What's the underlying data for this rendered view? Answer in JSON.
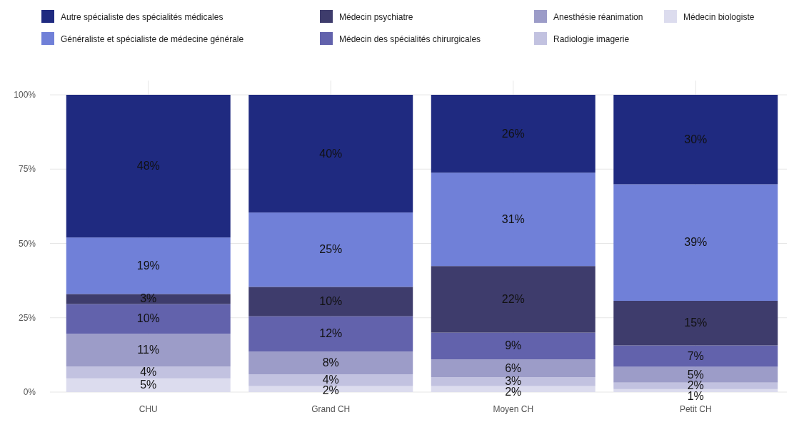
{
  "chart_data": {
    "type": "bar",
    "stacked": true,
    "categories": [
      "CHU",
      "Grand CH",
      "Moyen CH",
      "Petit CH"
    ],
    "ylim": [
      0,
      100
    ],
    "yticks": [
      {
        "value": 0,
        "label": "0%"
      },
      {
        "value": 25,
        "label": "25%"
      },
      {
        "value": 50,
        "label": "50%"
      },
      {
        "value": 75,
        "label": "75%"
      },
      {
        "value": 100,
        "label": "100%"
      }
    ],
    "grid": true,
    "legend": "top",
    "data_labels": false,
    "series": [
      {
        "name": "Médecin biologiste",
        "color": "#dcdcee",
        "values": [
          4.6,
          2,
          2,
          1
        ],
        "value_labels": [
          "5%",
          "2%",
          "2%",
          "1%"
        ]
      },
      {
        "name": "Radiologie imagerie",
        "color": "#c2c2e0",
        "values": [
          4,
          4,
          3,
          2.2
        ],
        "value_labels": [
          "4%",
          "4%",
          "3%",
          "2%"
        ]
      },
      {
        "name": "Anesthésie réanimation",
        "color": "#9c9cc8",
        "values": [
          11,
          7.6,
          6,
          5.3
        ],
        "value_labels": [
          "11%",
          "8%",
          "6%",
          "5%"
        ]
      },
      {
        "name": "Médecin des spécialités chirurgicales",
        "color": "#6262ac",
        "values": [
          10,
          11.9,
          9,
          7.2
        ],
        "value_labels": [
          "10%",
          "12%",
          "9%",
          "7%"
        ]
      },
      {
        "name": "Médecin psychiatre",
        "color": "#3e3c6c",
        "values": [
          3.4,
          9.9,
          22.4,
          15
        ],
        "value_labels": [
          "3%",
          "10%",
          "22%",
          "15%"
        ]
      },
      {
        "name": "Généraliste et spécialiste de médecine générale",
        "color": "#7080d8",
        "values": [
          19,
          25,
          31.4,
          39.2
        ],
        "value_labels": [
          "19%",
          "25%",
          "31%",
          "39%"
        ]
      },
      {
        "name": "Autre spécialiste des spécialités médicales",
        "color": "#1f2a80",
        "values": [
          48,
          39.6,
          26.2,
          30.1
        ],
        "value_labels": [
          "48%",
          "40%",
          "26%",
          "30%"
        ]
      }
    ]
  }
}
